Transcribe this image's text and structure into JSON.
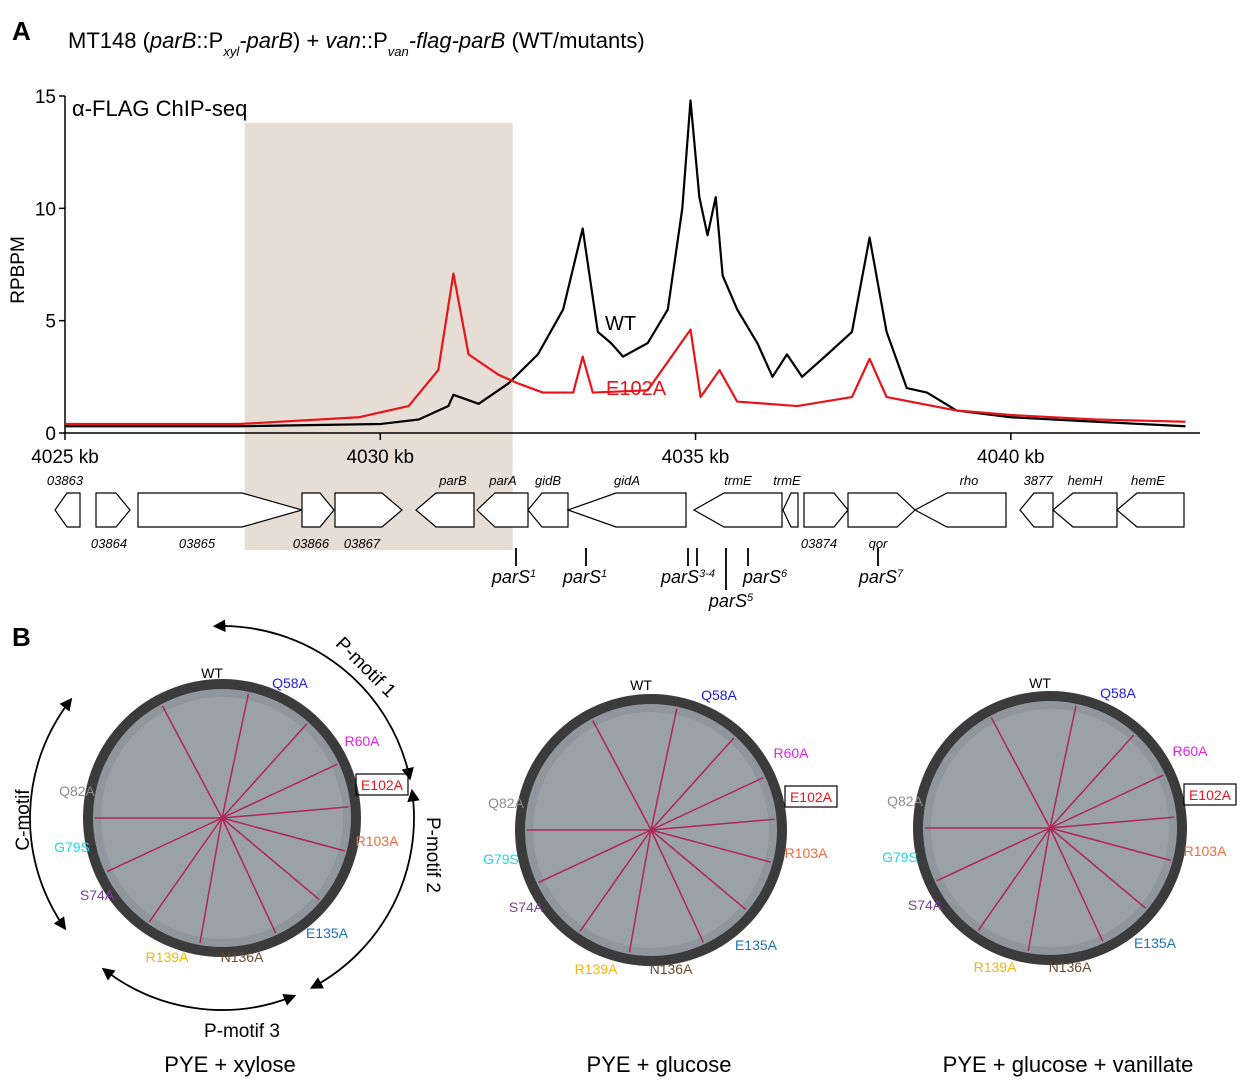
{
  "panel_a": {
    "letter": "A",
    "title_parts": [
      "MT148 (",
      "parB",
      "::P",
      "xyl",
      "-parB",
      ") + ",
      "van",
      "::P",
      "van",
      "-flag-parB",
      " (WT/mutants)"
    ]
  },
  "chart_data": {
    "type": "line",
    "annotation": "α-FLAG ChIP-seq",
    "y_label": "RPBPM",
    "xlim": [
      4025,
      4043
    ],
    "ylim": [
      0,
      15
    ],
    "xticks": [
      {
        "value": 4025,
        "label": "4025 kb"
      },
      {
        "value": 4030,
        "label": "4030 kb"
      },
      {
        "value": 4035,
        "label": "4035 kb"
      },
      {
        "value": 4040,
        "label": "4040 kb"
      }
    ],
    "yticks": [
      0,
      5,
      10,
      15
    ],
    "highlight": {
      "x": [
        4027.85,
        4032.1
      ],
      "y_top": 13.8,
      "color": "#e6ddd4"
    },
    "series": [
      {
        "name": "WT",
        "color": "#000000",
        "x": [
          4025,
          4027.76,
          4030,
          4030.61,
          4031.08,
          4031.16,
          4031.56,
          4032.03,
          4032.5,
          4032.9,
          4033.21,
          4033.45,
          4033.66,
          4033.85,
          4034.24,
          4034.56,
          4034.79,
          4034.92,
          4035.06,
          4035.19,
          4035.32,
          4035.43,
          4035.66,
          4035.98,
          4036.22,
          4036.45,
          4036.69,
          4037.09,
          4037.48,
          4037.76,
          4038.03,
          4038.35,
          4038.67,
          4039.14,
          4040,
          4041.35,
          4042.77
        ],
        "values": [
          0.3,
          0.3,
          0.4,
          0.6,
          1.2,
          1.7,
          1.3,
          2.2,
          3.5,
          5.5,
          9.1,
          4.5,
          4.0,
          3.4,
          4.0,
          5.5,
          10,
          14.8,
          10.5,
          8.8,
          10.5,
          7.0,
          5.5,
          4.0,
          2.5,
          3.5,
          2.5,
          3.5,
          4.5,
          8.7,
          4.5,
          2.0,
          1.8,
          1.0,
          0.7,
          0.5,
          0.3
        ]
      },
      {
        "name": "E102A",
        "color": "#e8141c",
        "x": [
          4025,
          4027.76,
          4029.66,
          4030.45,
          4030.92,
          4031.16,
          4031.4,
          4031.87,
          4032.19,
          4032.58,
          4033.06,
          4033.21,
          4033.37,
          4034.24,
          4034.92,
          4035.08,
          4035.38,
          4035.66,
          4036.61,
          4037.48,
          4037.76,
          4038.03,
          4039.14,
          4040,
          4041.35,
          4042.77
        ],
        "values": [
          0.4,
          0.4,
          0.7,
          1.2,
          2.8,
          7.1,
          3.5,
          2.6,
          2.2,
          1.8,
          1.8,
          3.4,
          1.8,
          1.9,
          4.6,
          1.6,
          2.8,
          1.4,
          1.2,
          1.6,
          3.3,
          1.6,
          1.0,
          0.8,
          0.6,
          0.5
        ]
      }
    ]
  },
  "genes": [
    "03863",
    "03864",
    "03865",
    "03866",
    "03867",
    "parB",
    "parA",
    "gidB",
    "gidA",
    "trmE",
    "trmE",
    "03874",
    "qor",
    "rho",
    "3877",
    "hemH",
    "hemE"
  ],
  "pars_sites": [
    {
      "name": "parS",
      "sup": "1"
    },
    {
      "name": "parS",
      "sup": "1"
    },
    {
      "name": "parS",
      "sup": "3-4"
    },
    {
      "name": "parS",
      "sup": "6"
    },
    {
      "name": "parS",
      "sup": "5"
    },
    {
      "name": "parS",
      "sup": "7"
    }
  ],
  "panel_b": {
    "letter": "B",
    "motifs": [
      "P-motif 1",
      "P-motif 2",
      "P-motif 3",
      "C-motif"
    ],
    "strains": [
      {
        "label": "WT",
        "color": "#000000"
      },
      {
        "label": "Q58A",
        "color": "#1c1ce0"
      },
      {
        "label": "R60A",
        "color": "#e81fe8"
      },
      {
        "label": "E102A",
        "color": "#e8141c"
      },
      {
        "label": "R103A",
        "color": "#f26b3a"
      },
      {
        "label": "E135A",
        "color": "#1f70b8"
      },
      {
        "label": "N136A",
        "color": "#6b4a2a"
      },
      {
        "label": "R139A",
        "color": "#f2b705"
      },
      {
        "label": "S74A",
        "color": "#7a3d9c"
      },
      {
        "label": "G79S",
        "color": "#1ed6f0"
      },
      {
        "label": "Q82A",
        "color": "#8c8c8c"
      }
    ],
    "plates": [
      "PYE + xylose",
      "PYE + glucose",
      "PYE + glucose + vanillate"
    ]
  }
}
